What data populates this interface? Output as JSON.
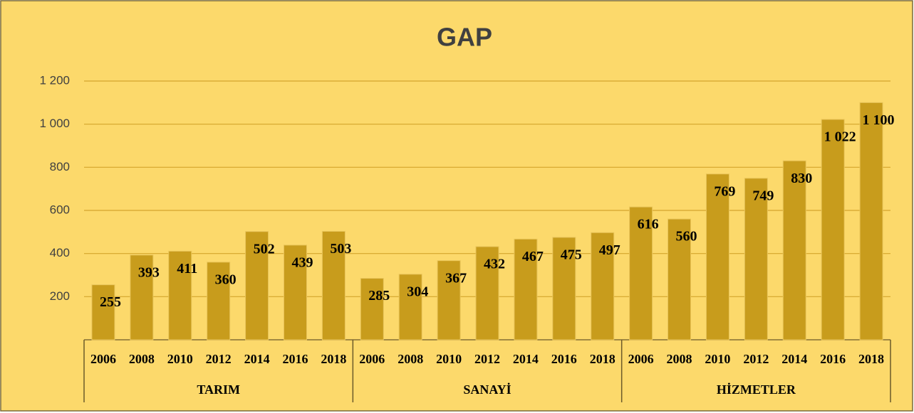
{
  "chart_data": {
    "type": "bar",
    "title": "GAP",
    "color": "#c89c1c",
    "ylim": [
      0,
      1200
    ],
    "yticks": [
      200,
      400,
      600,
      800,
      {
        "value": 1000,
        "label": "1 000"
      },
      {
        "value": 1200,
        "label": "1 200"
      }
    ],
    "grid": true,
    "groups": [
      {
        "name": "TARIM",
        "categories": [
          "2006",
          "2008",
          "2010",
          "2012",
          "2014",
          "2016",
          "2018"
        ],
        "values": [
          255,
          393,
          411,
          360,
          502,
          439,
          503
        ],
        "value_labels": [
          "255",
          "393",
          "411",
          "360",
          "502",
          "439",
          "503"
        ]
      },
      {
        "name": "SANAYİ",
        "categories": [
          "2006",
          "2008",
          "2010",
          "2012",
          "2014",
          "2016",
          "2018"
        ],
        "values": [
          285,
          304,
          367,
          432,
          467,
          475,
          497
        ],
        "value_labels": [
          "285",
          "304",
          "367",
          "432",
          "467",
          "475",
          "497"
        ]
      },
      {
        "name": "HİZMETLER",
        "categories": [
          "2006",
          "2008",
          "2010",
          "2012",
          "2014",
          "2016",
          "2018"
        ],
        "values": [
          616,
          560,
          769,
          749,
          830,
          1022,
          1100
        ],
        "value_labels": [
          "616",
          "560",
          "769",
          "749",
          "830",
          "1 022",
          "1 100"
        ]
      }
    ]
  }
}
